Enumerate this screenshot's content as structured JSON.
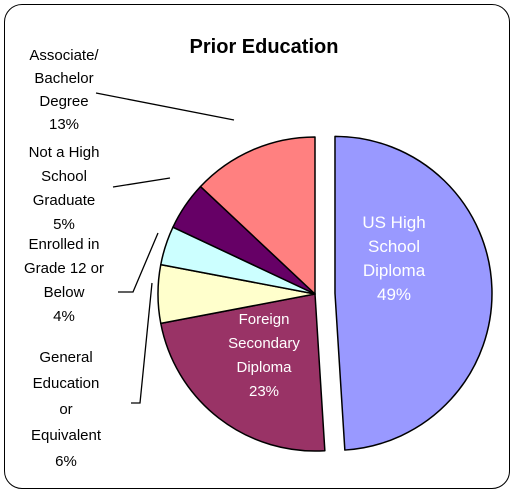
{
  "chart_data": {
    "type": "pie",
    "title": "Prior Education",
    "slices": [
      {
        "key": "us",
        "label_lines": [
          "US High",
          "School",
          "Diploma"
        ],
        "value": 49,
        "value_label": "49%",
        "color": "#9999FF",
        "exploded": true,
        "label_inside": true
      },
      {
        "key": "foreign",
        "label_lines": [
          "Foreign",
          "Secondary",
          "Diploma"
        ],
        "value": 23,
        "value_label": "23%",
        "color": "#993366",
        "exploded": false,
        "label_inside": true
      },
      {
        "key": "ged",
        "label_lines": [
          "General",
          "Education",
          "or",
          "Equivalent"
        ],
        "value": 6,
        "value_label": "6%",
        "color": "#FFFFCC",
        "exploded": false,
        "label_inside": false
      },
      {
        "key": "enrolled",
        "label_lines": [
          "Enrolled in",
          "Grade 12 or",
          "Below"
        ],
        "value": 4,
        "value_label": "4%",
        "color": "#CCFFFF",
        "exploded": false,
        "label_inside": false
      },
      {
        "key": "nothsg",
        "label_lines": [
          "Not a High",
          "School",
          "Graduate"
        ],
        "value": 5,
        "value_label": "5%",
        "color": "#660066",
        "exploded": false,
        "label_inside": false
      },
      {
        "key": "assoc",
        "label_lines": [
          "Associate/",
          "Bachelor",
          "Degree"
        ],
        "value": 13,
        "value_label": "13%",
        "color": "#FF8080",
        "exploded": false,
        "label_inside": false
      }
    ]
  }
}
